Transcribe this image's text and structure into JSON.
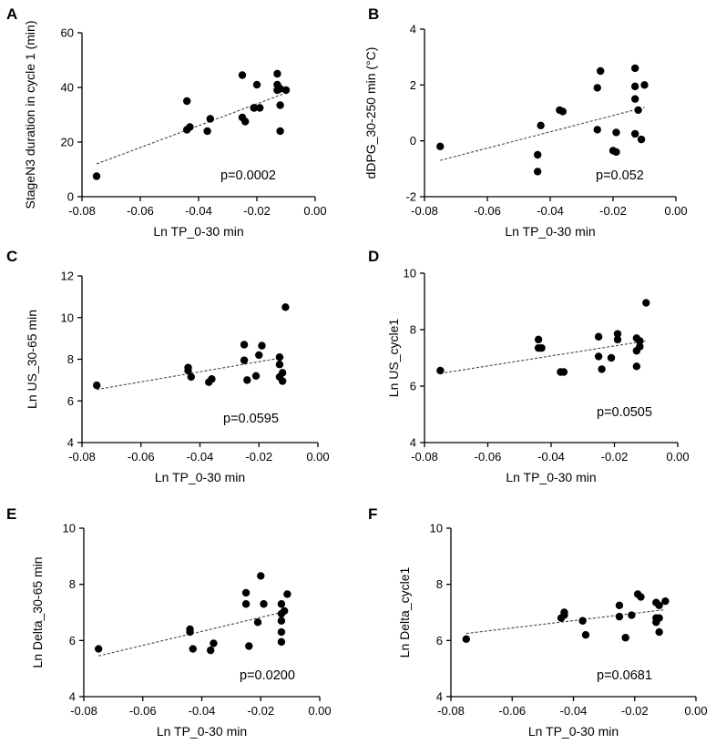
{
  "figure": {
    "background": "#ffffff",
    "point_color": "#000000",
    "fit_line_color": "#444444"
  },
  "chart_data": [
    {
      "panel": "A",
      "type": "scatter",
      "xlabel": "Ln TP_0-30 min",
      "ylabel": "StageN3 duration in cycle 1 (min)",
      "xlim": [
        -0.08,
        0.0
      ],
      "ylim": [
        0,
        60
      ],
      "xticks": [
        "-0.08",
        "-0.06",
        "-0.04",
        "-0.02",
        "0.00"
      ],
      "yticks": [
        "0",
        "20",
        "40",
        "60"
      ],
      "x": [
        -0.075,
        -0.044,
        -0.044,
        -0.043,
        -0.037,
        -0.036,
        -0.025,
        -0.025,
        -0.024,
        -0.021,
        -0.021,
        -0.02,
        -0.019,
        -0.013,
        -0.013,
        -0.013,
        -0.012,
        -0.012,
        -0.012,
        -0.01
      ],
      "y": [
        7.5,
        35,
        24.5,
        25.5,
        24,
        28.5,
        44.5,
        29,
        27.5,
        32.5,
        32.5,
        41,
        32.5,
        45,
        41,
        39,
        33.5,
        39.5,
        24,
        39
      ],
      "fit": {
        "x": [
          -0.075,
          -0.01
        ],
        "y": [
          12,
          38
        ]
      },
      "annotation": "p=0.0002"
    },
    {
      "panel": "B",
      "type": "scatter",
      "xlabel": "Ln TP_0-30 min",
      "ylabel": "dDPG_30-250 min (°C)",
      "xlim": [
        -0.08,
        0.0
      ],
      "ylim": [
        -2,
        4
      ],
      "xticks": [
        "-0.08",
        "-0.06",
        "-0.04",
        "-0.02",
        "0.00"
      ],
      "yticks": [
        "-2",
        "0",
        "2",
        "4"
      ],
      "x": [
        -0.075,
        -0.044,
        -0.044,
        -0.043,
        -0.037,
        -0.036,
        -0.025,
        -0.025,
        -0.024,
        -0.02,
        -0.019,
        -0.019,
        -0.013,
        -0.013,
        -0.013,
        -0.013,
        -0.012,
        -0.011,
        -0.01
      ],
      "y": [
        -0.2,
        -1.1,
        -0.5,
        0.55,
        1.1,
        1.05,
        1.9,
        0.4,
        2.5,
        -0.35,
        -0.4,
        0.3,
        2.6,
        1.95,
        1.5,
        0.25,
        1.1,
        0.05,
        2.0
      ],
      "fit": {
        "x": [
          -0.075,
          -0.01
        ],
        "y": [
          -0.7,
          1.2
        ]
      },
      "annotation": "p=0.052"
    },
    {
      "panel": "C",
      "type": "scatter",
      "xlabel": "Ln TP_0-30 min",
      "ylabel": "Ln US_30-65 min",
      "xlim": [
        -0.08,
        0.0
      ],
      "ylim": [
        4,
        12
      ],
      "xticks": [
        "-0.08",
        "-0.06",
        "-0.04",
        "-0.02",
        "0.00"
      ],
      "yticks": [
        "4",
        "6",
        "8",
        "10",
        "12"
      ],
      "x": [
        -0.075,
        -0.044,
        -0.044,
        -0.043,
        -0.037,
        -0.036,
        -0.025,
        -0.025,
        -0.024,
        -0.021,
        -0.02,
        -0.019,
        -0.013,
        -0.013,
        -0.013,
        -0.012,
        -0.012,
        -0.011
      ],
      "y": [
        6.75,
        7.6,
        7.45,
        7.15,
        6.9,
        7.05,
        8.7,
        7.95,
        7.0,
        7.2,
        8.2,
        8.65,
        8.1,
        7.75,
        7.15,
        6.95,
        7.35,
        10.5
      ],
      "fit": {
        "x": [
          -0.075,
          -0.011
        ],
        "y": [
          6.55,
          8.1
        ]
      },
      "annotation": "p=0.0595"
    },
    {
      "panel": "D",
      "type": "scatter",
      "xlabel": "Ln TP_0-30 min",
      "ylabel": "Ln US_cycle1",
      "xlim": [
        -0.08,
        0.0
      ],
      "ylim": [
        4,
        10
      ],
      "xticks": [
        "-0.08",
        "-0.06",
        "-0.04",
        "-0.02",
        "0.00"
      ],
      "yticks": [
        "4",
        "6",
        "8",
        "10"
      ],
      "x": [
        -0.075,
        -0.044,
        -0.044,
        -0.043,
        -0.037,
        -0.036,
        -0.025,
        -0.025,
        -0.024,
        -0.021,
        -0.019,
        -0.019,
        -0.013,
        -0.013,
        -0.013,
        -0.012,
        -0.012,
        -0.01
      ],
      "y": [
        6.55,
        7.35,
        7.65,
        7.35,
        6.5,
        6.5,
        7.75,
        7.05,
        6.6,
        7.0,
        7.85,
        7.65,
        7.7,
        7.25,
        6.7,
        7.6,
        7.4,
        8.95
      ],
      "fit": {
        "x": [
          -0.075,
          -0.01
        ],
        "y": [
          6.45,
          7.6
        ]
      },
      "annotation": "p=0.0505"
    },
    {
      "panel": "E",
      "type": "scatter",
      "xlabel": "Ln TP_0-30 min",
      "ylabel": "Ln Delta_30-65 min",
      "xlim": [
        -0.08,
        0.0
      ],
      "ylim": [
        4,
        10
      ],
      "xticks": [
        "-0.08",
        "-0.06",
        "-0.04",
        "-0.02",
        "0.00"
      ],
      "yticks": [
        "4",
        "6",
        "8",
        "10"
      ],
      "x": [
        -0.075,
        -0.044,
        -0.044,
        -0.043,
        -0.037,
        -0.036,
        -0.025,
        -0.025,
        -0.024,
        -0.021,
        -0.02,
        -0.019,
        -0.013,
        -0.013,
        -0.013,
        -0.013,
        -0.013,
        -0.012,
        -0.011
      ],
      "y": [
        5.7,
        6.4,
        6.3,
        5.7,
        5.65,
        5.9,
        7.7,
        7.3,
        5.8,
        6.65,
        8.3,
        7.3,
        7.3,
        6.95,
        6.7,
        6.3,
        5.95,
        7.05,
        7.65
      ],
      "fit": {
        "x": [
          -0.075,
          -0.011
        ],
        "y": [
          5.45,
          7.05
        ]
      },
      "annotation": "p=0.0200"
    },
    {
      "panel": "F",
      "type": "scatter",
      "xlabel": "Ln TP_0-30 min",
      "ylabel": "Ln Delta_cycle1",
      "xlim": [
        -0.08,
        0.0
      ],
      "ylim": [
        4,
        10
      ],
      "xticks": [
        "-0.08",
        "-0.06",
        "-0.04",
        "-0.02",
        "0.00"
      ],
      "yticks": [
        "4",
        "6",
        "8",
        "10"
      ],
      "x": [
        -0.075,
        -0.044,
        -0.043,
        -0.043,
        -0.037,
        -0.036,
        -0.025,
        -0.025,
        -0.023,
        -0.021,
        -0.019,
        -0.018,
        -0.013,
        -0.013,
        -0.013,
        -0.012,
        -0.012,
        -0.012,
        -0.01
      ],
      "y": [
        6.05,
        6.8,
        7.0,
        6.9,
        6.7,
        6.2,
        7.25,
        6.85,
        6.1,
        6.9,
        7.65,
        7.55,
        7.35,
        6.8,
        6.65,
        6.3,
        7.25,
        6.8,
        7.4
      ],
      "fit": {
        "x": [
          -0.075,
          -0.01
        ],
        "y": [
          6.25,
          7.1
        ]
      },
      "annotation": "p=0.0681"
    }
  ]
}
